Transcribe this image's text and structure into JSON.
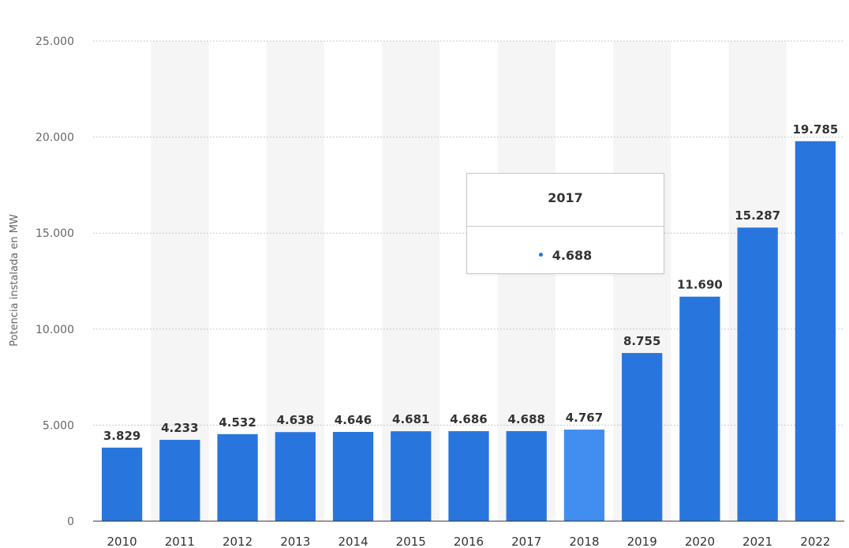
{
  "colors": {
    "bar": "#2876dd",
    "bar_highlight": "#428df0",
    "grid": "#c8c8c8",
    "band": "#f5f5f5"
  },
  "chart_data": {
    "type": "bar",
    "categories": [
      "2010",
      "2011",
      "2012",
      "2013",
      "2014",
      "2015",
      "2016",
      "2017",
      "2018",
      "2019",
      "2020",
      "2021",
      "2022"
    ],
    "values": [
      3829,
      4233,
      4532,
      4638,
      4646,
      4681,
      4686,
      4688,
      4767,
      8755,
      11690,
      15287,
      19785
    ],
    "data_labels": [
      "3.829",
      "4.233",
      "4.532",
      "4.638",
      "4.646",
      "4.681",
      "4.686",
      "4.688",
      "4.767",
      "8.755",
      "11.690",
      "15.287",
      "19.785"
    ],
    "ylabel": "Potencia instalada en MW",
    "ylim": [
      0,
      25000
    ],
    "yticks": [
      0,
      5000,
      10000,
      15000,
      20000,
      25000
    ],
    "ytick_labels": [
      "0",
      "5.000",
      "10.000",
      "15.000",
      "20.000",
      "25.000"
    ],
    "grid": true,
    "highlighted_category": "2018",
    "tooltip": {
      "title": "2017",
      "value": "4.688"
    }
  }
}
